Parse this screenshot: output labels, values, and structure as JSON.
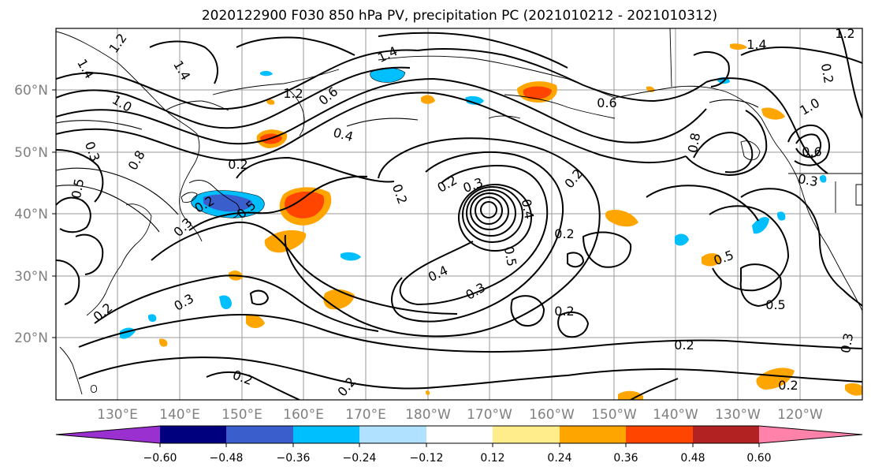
{
  "title": "2020122900 F030 850 hPa PV, precipitation PC (2021010212 - 2021010312)",
  "lat_labels": [
    "60°N",
    "50°N",
    "40°N",
    "30°N",
    "20°N"
  ],
  "lon_labels": [
    "130°E",
    "140°E",
    "150°E",
    "160°E",
    "170°E",
    "180°W",
    "170°W",
    "160°W",
    "150°W",
    "140°W",
    "130°W",
    "120°W"
  ],
  "colorbar": {
    "ticks": [
      "−0.60",
      "−0.48",
      "−0.36",
      "−0.24",
      "−0.12",
      "0.12",
      "0.24",
      "0.36",
      "0.48",
      "0.60"
    ],
    "colors": [
      "#9b30d0",
      "#00007f",
      "#3a5fcd",
      "#00bfff",
      "#b0e2ff",
      "#ffffff",
      "#ffec8b",
      "#ffa500",
      "#ff4500",
      "#b22222",
      "#ff82ab"
    ]
  },
  "contour_labels": [
    {
      "text": "1.2"
    },
    {
      "text": "1.4"
    },
    {
      "text": "1.4"
    },
    {
      "text": "1.0"
    },
    {
      "text": "1.4"
    },
    {
      "text": "1.2"
    },
    {
      "text": "0.6"
    },
    {
      "text": "0.4"
    },
    {
      "text": "0.8"
    },
    {
      "text": "0.2"
    },
    {
      "text": "0.3"
    },
    {
      "text": "0.5"
    },
    {
      "text": "0.2"
    },
    {
      "text": "0.2"
    },
    {
      "text": "0.2"
    },
    {
      "text": "0.3"
    },
    {
      "text": "0.5"
    },
    {
      "text": "0.2"
    },
    {
      "text": "0.3"
    },
    {
      "text": "0.2"
    },
    {
      "text": "0.2"
    },
    {
      "text": "0.3"
    },
    {
      "text": "0.2"
    },
    {
      "text": "0.4"
    },
    {
      "text": "0.5"
    },
    {
      "text": "0.4"
    },
    {
      "text": "0.3"
    },
    {
      "text": "0.2"
    },
    {
      "text": "0.2"
    },
    {
      "text": "0.2"
    },
    {
      "text": "0.5"
    },
    {
      "text": "0.5"
    },
    {
      "text": "0.8"
    },
    {
      "text": "0.6"
    },
    {
      "text": "0.3"
    },
    {
      "text": "1.0"
    },
    {
      "text": "1.2"
    },
    {
      "text": "1.4"
    },
    {
      "text": "0.2"
    },
    {
      "text": "0.2"
    },
    {
      "text": "0.3"
    },
    {
      "text": "0.6"
    }
  ]
}
